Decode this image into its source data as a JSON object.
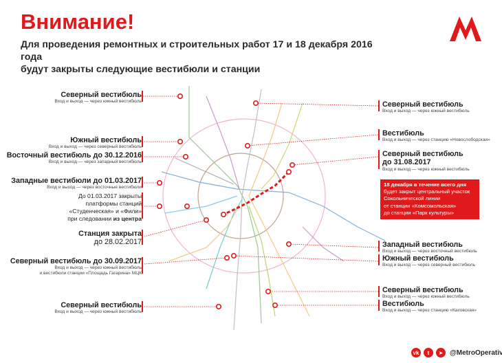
{
  "header": {
    "title": "Внимание!",
    "subtitle_line1": "Для проведения ремонтных и строительных работ 17 и 18 декабря 2016 года",
    "subtitle_line2": "будут закрыты следующие вестибюли и станции"
  },
  "colors": {
    "accent": "#e0191b"
  },
  "annotations_left": [
    {
      "heading": "Северный вестибюль",
      "sub": "Вход и выход — через южный вестибюль"
    },
    {
      "heading": "Южный вестибюль",
      "sub": "Вход и выход — через северный вестибюль"
    },
    {
      "heading": "Восточный вестибюль до 30.12.2016",
      "sub": "Вход и выход — через западный вестибюль"
    },
    {
      "heading": "Западные вестибюли до 01.03.2017",
      "sub": "Вход и выход — через восточные вестибюли"
    },
    {
      "line1": "До 01.03.2017 закрыты",
      "line2": "платформы станций",
      "line3": "«Студенческая» и «Фили»",
      "line4_pre": "при следовании ",
      "line4_bold": "из центра"
    },
    {
      "heading": "Станция закрыта",
      "heading2": "до 28.02.2017"
    },
    {
      "heading": "Северный вестибюль до 30.09.2017",
      "sub": "Вход и выход — через южный вестибюль",
      "sub2": "и вестибюли станции «Площадь Гагарина» МЦК"
    },
    {
      "heading": "Северный вестибюль",
      "sub": "Вход и выход — через южный вестибюль"
    }
  ],
  "annotations_right": [
    {
      "heading": "Северный вестибюль",
      "sub": "Вход и выход — через южный вестибюль"
    },
    {
      "heading": "Вестибюль",
      "sub": "Вход и выход — через станцию «Новослободская»"
    },
    {
      "heading": "Северный вестибюль",
      "heading2": "до 31.08.2017",
      "sub": "Вход и выход — через южный вестибюль"
    },
    {
      "heading": "Западный вестибюль",
      "sub": "Вход и выход — через восточный вестибюль"
    },
    {
      "heading": "Южный вестибюль",
      "sub": "Вход и выход — через северный вестибюль"
    },
    {
      "heading": "Северный вестибюль",
      "sub": "Вход и выход — через южный вестибюль"
    },
    {
      "heading": "Вестибюль",
      "sub": "Вход и выход — через станцию «Каховская»"
    }
  ],
  "notice": {
    "line1": "18 декабря в течение всего дня",
    "line2": "будет закрыт центральный участок",
    "line3": "Сокольнической линии",
    "line4": "от станции «Комсомольская»",
    "line5": "до станции «Парк культуры»"
  },
  "social": {
    "handle": "@MetroOperativno",
    "icons": [
      "vk-icon",
      "twitter-icon",
      "telegram-icon"
    ]
  }
}
